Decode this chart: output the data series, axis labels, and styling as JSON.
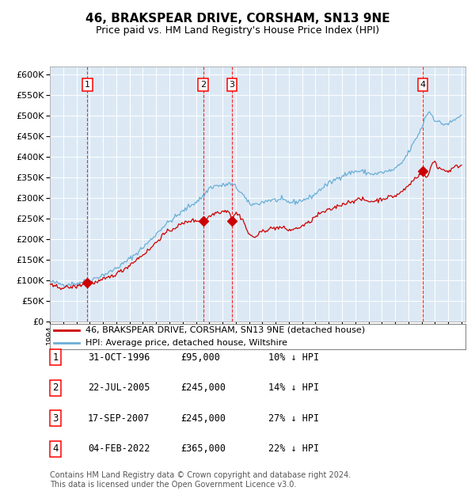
{
  "title": "46, BRAKSPEAR DRIVE, CORSHAM, SN13 9NE",
  "subtitle": "Price paid vs. HM Land Registry's House Price Index (HPI)",
  "title_fontsize": 11,
  "subtitle_fontsize": 9,
  "plot_bg_color": "#dce9f5",
  "hpi_color": "#6aaed6",
  "price_color": "#cc0000",
  "ylim": [
    0,
    620000
  ],
  "yticks": [
    0,
    50000,
    100000,
    150000,
    200000,
    250000,
    300000,
    350000,
    400000,
    450000,
    500000,
    550000,
    600000
  ],
  "legend_label_price": "46, BRAKSPEAR DRIVE, CORSHAM, SN13 9NE (detached house)",
  "legend_label_hpi": "HPI: Average price, detached house, Wiltshire",
  "transactions": [
    {
      "num": 1,
      "date": "31-OCT-1996",
      "price": 95000,
      "hpi_pct": "10% ↓ HPI",
      "year_x": 1996.83
    },
    {
      "num": 2,
      "date": "22-JUL-2005",
      "price": 245000,
      "hpi_pct": "14% ↓ HPI",
      "year_x": 2005.55
    },
    {
      "num": 3,
      "date": "17-SEP-2007",
      "price": 245000,
      "hpi_pct": "27% ↓ HPI",
      "year_x": 2007.71
    },
    {
      "num": 4,
      "date": "04-FEB-2022",
      "price": 365000,
      "hpi_pct": "22% ↓ HPI",
      "year_x": 2022.09
    }
  ],
  "table_rows": [
    [
      "1",
      "31-OCT-1996",
      "£95,000",
      "10% ↓ HPI"
    ],
    [
      "2",
      "22-JUL-2005",
      "£245,000",
      "14% ↓ HPI"
    ],
    [
      "3",
      "17-SEP-2007",
      "£245,000",
      "27% ↓ HPI"
    ],
    [
      "4",
      "04-FEB-2022",
      "£365,000",
      "22% ↓ HPI"
    ]
  ],
  "footer": "Contains HM Land Registry data © Crown copyright and database right 2024.\nThis data is licensed under the Open Government Licence v3.0.",
  "footer_fontsize": 7,
  "xmin": 1994,
  "xmax": 2025.3,
  "hpi_anchors": [
    [
      1994.0,
      97000
    ],
    [
      1995.0,
      90000
    ],
    [
      1996.0,
      93000
    ],
    [
      1997.0,
      100000
    ],
    [
      1998.5,
      120000
    ],
    [
      1999.5,
      140000
    ],
    [
      2000.5,
      165000
    ],
    [
      2001.5,
      195000
    ],
    [
      2002.5,
      230000
    ],
    [
      2003.5,
      255000
    ],
    [
      2004.5,
      280000
    ],
    [
      2005.2,
      295000
    ],
    [
      2005.7,
      310000
    ],
    [
      2006.0,
      325000
    ],
    [
      2006.5,
      330000
    ],
    [
      2007.0,
      330000
    ],
    [
      2007.5,
      335000
    ],
    [
      2007.9,
      330000
    ],
    [
      2008.5,
      310000
    ],
    [
      2009.0,
      285000
    ],
    [
      2009.5,
      285000
    ],
    [
      2010.5,
      295000
    ],
    [
      2011.5,
      295000
    ],
    [
      2012.0,
      290000
    ],
    [
      2012.5,
      290000
    ],
    [
      2013.0,
      295000
    ],
    [
      2013.5,
      300000
    ],
    [
      2014.0,
      310000
    ],
    [
      2014.5,
      325000
    ],
    [
      2015.0,
      335000
    ],
    [
      2015.5,
      345000
    ],
    [
      2016.0,
      355000
    ],
    [
      2016.5,
      360000
    ],
    [
      2017.0,
      365000
    ],
    [
      2017.5,
      365000
    ],
    [
      2018.0,
      360000
    ],
    [
      2018.5,
      358000
    ],
    [
      2019.0,
      362000
    ],
    [
      2019.5,
      365000
    ],
    [
      2020.0,
      370000
    ],
    [
      2020.5,
      385000
    ],
    [
      2021.0,
      410000
    ],
    [
      2021.5,
      440000
    ],
    [
      2022.0,
      470000
    ],
    [
      2022.3,
      500000
    ],
    [
      2022.6,
      510000
    ],
    [
      2023.0,
      490000
    ],
    [
      2023.5,
      480000
    ],
    [
      2024.0,
      480000
    ],
    [
      2024.5,
      490000
    ],
    [
      2024.9,
      500000
    ]
  ],
  "price_anchors": [
    [
      1994.0,
      88000
    ],
    [
      1995.0,
      82000
    ],
    [
      1996.0,
      85000
    ],
    [
      1996.83,
      95000
    ],
    [
      1997.5,
      95000
    ],
    [
      1998.5,
      108000
    ],
    [
      1999.5,
      125000
    ],
    [
      2000.5,
      150000
    ],
    [
      2001.5,
      175000
    ],
    [
      2002.5,
      210000
    ],
    [
      2003.5,
      230000
    ],
    [
      2004.5,
      245000
    ],
    [
      2005.55,
      245000
    ],
    [
      2006.0,
      255000
    ],
    [
      2006.5,
      265000
    ],
    [
      2007.0,
      268000
    ],
    [
      2007.5,
      270000
    ],
    [
      2007.71,
      245000
    ],
    [
      2008.0,
      265000
    ],
    [
      2008.5,
      250000
    ],
    [
      2009.0,
      210000
    ],
    [
      2009.5,
      205000
    ],
    [
      2010.0,
      220000
    ],
    [
      2010.5,
      225000
    ],
    [
      2011.0,
      228000
    ],
    [
      2011.5,
      228000
    ],
    [
      2012.0,
      222000
    ],
    [
      2012.5,
      225000
    ],
    [
      2013.0,
      232000
    ],
    [
      2013.5,
      240000
    ],
    [
      2014.0,
      255000
    ],
    [
      2014.5,
      265000
    ],
    [
      2015.0,
      270000
    ],
    [
      2015.5,
      278000
    ],
    [
      2016.0,
      285000
    ],
    [
      2016.5,
      290000
    ],
    [
      2017.0,
      295000
    ],
    [
      2017.5,
      297000
    ],
    [
      2018.0,
      292000
    ],
    [
      2018.5,
      293000
    ],
    [
      2019.0,
      298000
    ],
    [
      2019.5,
      302000
    ],
    [
      2020.0,
      305000
    ],
    [
      2020.5,
      315000
    ],
    [
      2021.0,
      330000
    ],
    [
      2021.5,
      348000
    ],
    [
      2022.09,
      365000
    ],
    [
      2022.3,
      350000
    ],
    [
      2022.5,
      355000
    ],
    [
      2022.8,
      385000
    ],
    [
      2023.0,
      390000
    ],
    [
      2023.2,
      375000
    ],
    [
      2023.5,
      370000
    ],
    [
      2024.0,
      365000
    ],
    [
      2024.5,
      375000
    ],
    [
      2024.9,
      380000
    ]
  ]
}
